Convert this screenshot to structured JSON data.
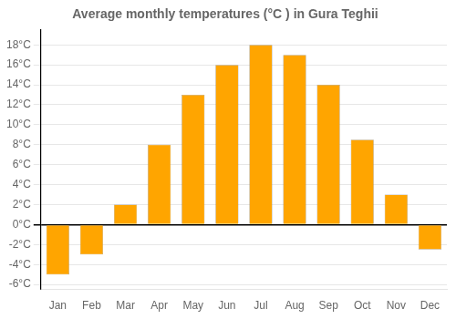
{
  "chart_data": {
    "type": "bar",
    "title": "Average monthly temperatures (°C ) in Gura Teghii",
    "categories": [
      "Jan",
      "Feb",
      "Mar",
      "Apr",
      "May",
      "Jun",
      "Jul",
      "Aug",
      "Sep",
      "Oct",
      "Nov",
      "Dec"
    ],
    "values": [
      -5.0,
      -3.0,
      2.0,
      8.0,
      13.0,
      16.0,
      18.0,
      17.0,
      14.0,
      8.5,
      3.0,
      -2.5
    ],
    "color": "#FFA500",
    "ylim": [
      -6.5,
      19.5
    ],
    "yticks": [
      {
        "value": -6,
        "label": "-6°C"
      },
      {
        "value": -4,
        "label": "-4°C"
      },
      {
        "value": -2,
        "label": "-2°C"
      },
      {
        "value": 0,
        "label": "0°C"
      },
      {
        "value": 2,
        "label": "2°C"
      },
      {
        "value": 4,
        "label": "4°C"
      },
      {
        "value": 6,
        "label": "6°C"
      },
      {
        "value": 8,
        "label": "8°C"
      },
      {
        "value": 10,
        "label": "10°C"
      },
      {
        "value": 12,
        "label": "12°C"
      },
      {
        "value": 14,
        "label": "14°C"
      },
      {
        "value": 16,
        "label": "16°C"
      },
      {
        "value": 18,
        "label": "18°C"
      }
    ],
    "grid": true
  }
}
